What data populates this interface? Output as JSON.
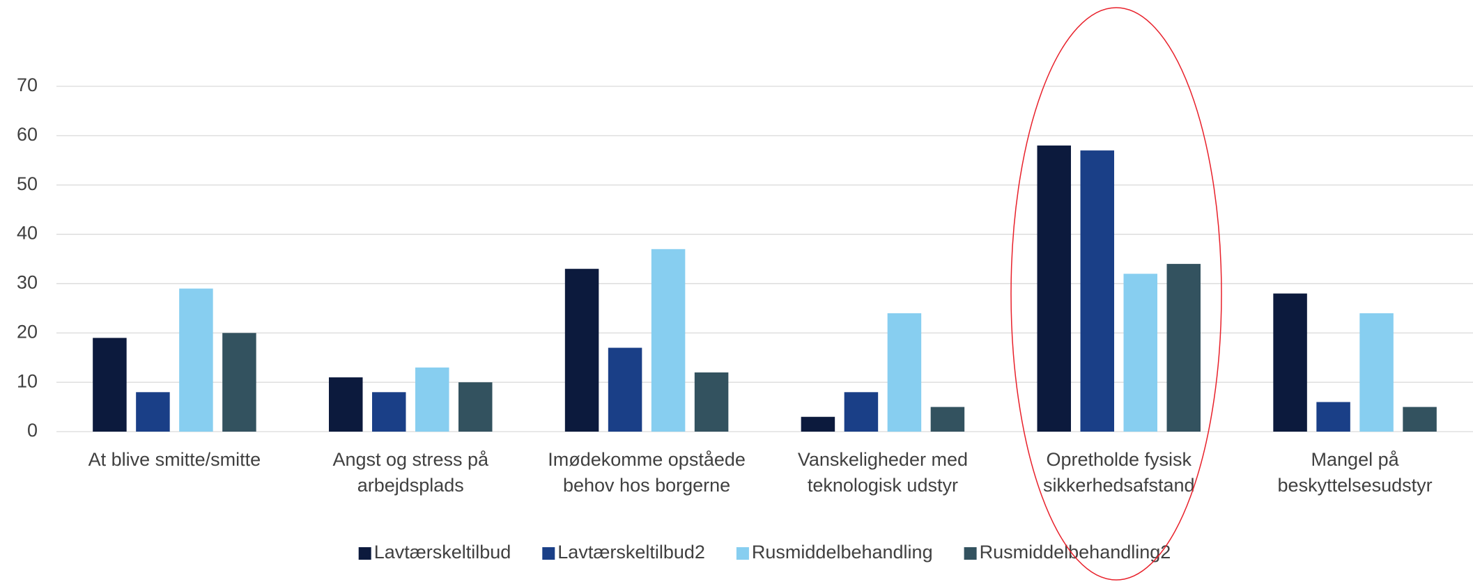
{
  "chart_data": {
    "type": "bar",
    "categories": [
      "At blive smitte/smitte",
      "Angst og stress på arbejdsplads",
      "Imødekomme opståede behov hos borgerne",
      "Vanskeligheder med teknologisk udstyr",
      "Opretholde fysisk sikkerhedsafstand",
      "Mangel på beskyttelsesudstyr"
    ],
    "series": [
      {
        "name": "Lavtærskeltilbud",
        "color": "#0c1a3d",
        "values": [
          19,
          11,
          33,
          3,
          58,
          28
        ]
      },
      {
        "name": "Lavtærskeltilbud2",
        "color": "#1a3f87",
        "values": [
          8,
          8,
          17,
          8,
          57,
          6
        ]
      },
      {
        "name": "Rusmiddelbehandling",
        "color": "#87cef0",
        "values": [
          29,
          13,
          37,
          24,
          32,
          24
        ]
      },
      {
        "name": "Rusmiddelbehandling2",
        "color": "#33525f",
        "values": [
          20,
          10,
          12,
          5,
          34,
          5
        ]
      }
    ],
    "ylim": [
      0,
      70
    ],
    "yticks": [
      0,
      10,
      20,
      30,
      40,
      50,
      60,
      70
    ],
    "grid": true,
    "legend": "bottom"
  }
}
